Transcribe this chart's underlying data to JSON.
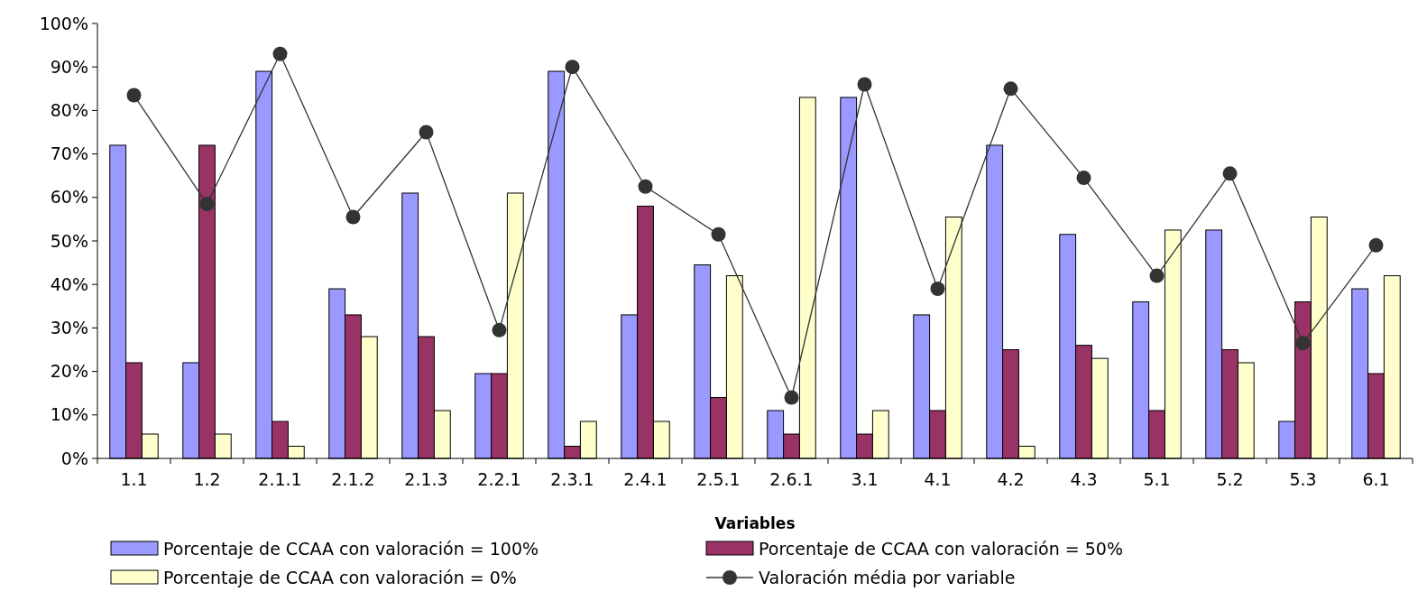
{
  "chart_data": {
    "type": "bar",
    "xlabel": "Variables",
    "categories": [
      "1.1",
      "1.2",
      "2.1.1",
      "2.1.2",
      "2.1.3",
      "2.2.1",
      "2.3.1",
      "2.4.1",
      "2.5.1",
      "2.6.1",
      "3.1",
      "4.1",
      "4.2",
      "4.3",
      "5.1",
      "5.2",
      "5.3",
      "6.1"
    ],
    "series": [
      {
        "name": "Porcentaje de CCAA con valoración = 100%",
        "color": "#9999ff",
        "values": [
          72,
          22,
          89,
          39,
          61,
          19.5,
          89,
          33,
          44.5,
          11,
          83,
          33,
          72,
          51.5,
          36,
          52.5,
          8.5,
          39
        ]
      },
      {
        "name": "Porcentaje de CCAA con valoración = 50%",
        "color": "#993366",
        "values": [
          22,
          72,
          8.5,
          33,
          28,
          19.5,
          2.8,
          58,
          14,
          5.6,
          5.6,
          11,
          25,
          26,
          11,
          25,
          36,
          19.5
        ]
      },
      {
        "name": "Porcentaje de CCAA con valoración = 0%",
        "color": "#ffffcc",
        "values": [
          5.6,
          5.6,
          2.8,
          28,
          11,
          61,
          8.5,
          8.5,
          42,
          83,
          11,
          55.5,
          2.8,
          23,
          52.5,
          22,
          55.5,
          42
        ]
      },
      {
        "name": "Valoración média por variable",
        "type": "line",
        "color": "#333333",
        "values": [
          83.5,
          58.5,
          93,
          55.5,
          75,
          29.5,
          90,
          62.5,
          51.5,
          14,
          86,
          39,
          85,
          64.5,
          42,
          65.5,
          26.5,
          49
        ]
      }
    ],
    "ylim": [
      0,
      100
    ],
    "yticks": [
      {
        "value": 0,
        "label": "0%"
      },
      {
        "value": 10,
        "label": "10%"
      },
      {
        "value": 20,
        "label": "20%"
      },
      {
        "value": 30,
        "label": "30%"
      },
      {
        "value": 40,
        "label": "40%"
      },
      {
        "value": 50,
        "label": "50%"
      },
      {
        "value": 60,
        "label": "60%"
      },
      {
        "value": 70,
        "label": "70%"
      },
      {
        "value": 80,
        "label": "80%"
      },
      {
        "value": 90,
        "label": "90%"
      },
      {
        "value": 100,
        "label": "100%"
      }
    ],
    "grid": false,
    "legend": "bottom",
    "marker": "circle",
    "line_style": "solid"
  }
}
